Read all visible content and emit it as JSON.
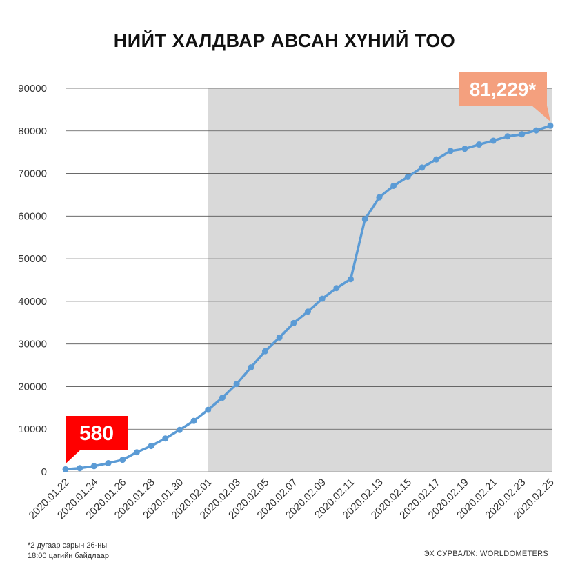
{
  "chart_data": {
    "type": "line",
    "title": "НИЙТ ХАЛДВАР АВСАН ХҮНИЙ ТОО",
    "x": [
      "2020.01.22",
      "2020.01.23",
      "2020.01.24",
      "2020.01.25",
      "2020.01.26",
      "2020.01.27",
      "2020.01.28",
      "2020.01.29",
      "2020.01.30",
      "2020.01.31",
      "2020.02.01",
      "2020.02.02",
      "2020.02.03",
      "2020.02.04",
      "2020.02.05",
      "2020.02.06",
      "2020.02.07",
      "2020.02.08",
      "2020.02.09",
      "2020.02.10",
      "2020.02.11",
      "2020.02.12",
      "2020.02.13",
      "2020.02.14",
      "2020.02.15",
      "2020.02.16",
      "2020.02.17",
      "2020.02.18",
      "2020.02.19",
      "2020.02.20",
      "2020.02.21",
      "2020.02.22",
      "2020.02.23",
      "2020.02.24",
      "2020.02.25"
    ],
    "x_tick_labels": [
      "2020.01.22",
      "2020.01.24",
      "2020.01.26",
      "2020.01.28",
      "2020.01.30",
      "2020.02.01",
      "2020.02.03",
      "2020.02.05",
      "2020.02.07",
      "2020.02.09",
      "2020.02.11",
      "2020.02.13",
      "2020.02.15",
      "2020.02.17",
      "2020.02.19",
      "2020.02.21",
      "2020.02.23",
      "2020.02.25"
    ],
    "series": [
      {
        "values": [
          580,
          845,
          1320,
          2015,
          2800,
          4580,
          6060,
          7820,
          9830,
          11950,
          14550,
          17400,
          20600,
          24500,
          28300,
          31500,
          34900,
          37600,
          40600,
          43100,
          45200,
          59300,
          64400,
          67100,
          69200,
          71400,
          73300,
          75300,
          75800,
          76800,
          77700,
          78700,
          79200,
          80100,
          81229
        ],
        "color": "#5b9bd5"
      }
    ],
    "ylim": [
      0,
      90000
    ],
    "y_ticks": [
      0,
      10000,
      20000,
      30000,
      40000,
      50000,
      60000,
      70000,
      80000,
      90000
    ],
    "grid": true,
    "shaded_range": [
      "2020.02.01",
      "2020.02.25"
    ],
    "shaded_color": "#d9d9d9",
    "annotations": [
      {
        "text": "580",
        "x": "2020.01.22",
        "y": 580,
        "color": "#ff0000"
      },
      {
        "text": "81,229*",
        "x": "2020.02.25",
        "y": 81229,
        "color": "#f4a07e"
      }
    ]
  },
  "footnote": {
    "line1": "*2 дугаар сарын 26-ны",
    "line2": "18:00 цагийн байдлаар"
  },
  "source": "ЭХ СУРВАЛЖ: WORLDOMETERS"
}
